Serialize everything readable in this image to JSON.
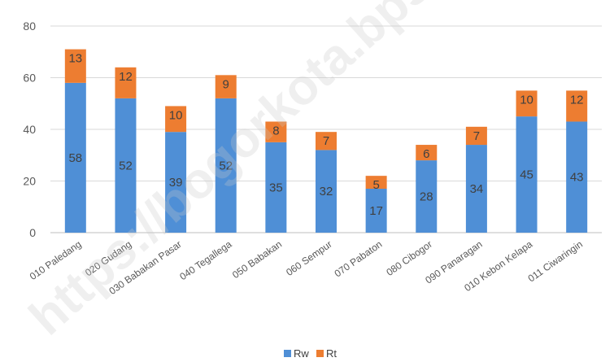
{
  "chart_data": {
    "type": "bar",
    "stacked": true,
    "categories": [
      "010 Paledang",
      "020 Gudang",
      "030 Babakan Pasar",
      "040 Tegallega",
      "050 Babakan",
      "060 Sempur",
      "070 Pabaton",
      "080 Cibogor",
      "090 Panaragan",
      "010 Kebon Kelapa",
      "011 Ciwaringin"
    ],
    "series": [
      {
        "name": "Rw",
        "color": "#4f8fd6",
        "values": [
          58,
          52,
          39,
          52,
          35,
          32,
          17,
          28,
          34,
          45,
          43
        ]
      },
      {
        "name": "Rt",
        "color": "#ed7d31",
        "values": [
          13,
          12,
          10,
          9,
          8,
          7,
          5,
          6,
          7,
          10,
          12
        ]
      }
    ],
    "y_ticks": [
      "0",
      "20",
      "40",
      "60",
      "80"
    ],
    "ylim": [
      0,
      80
    ],
    "grid": true,
    "legend_position": "bottom",
    "title": "",
    "xlabel": "",
    "ylabel": ""
  },
  "watermark": "https://bogorkota.bps.go.id"
}
